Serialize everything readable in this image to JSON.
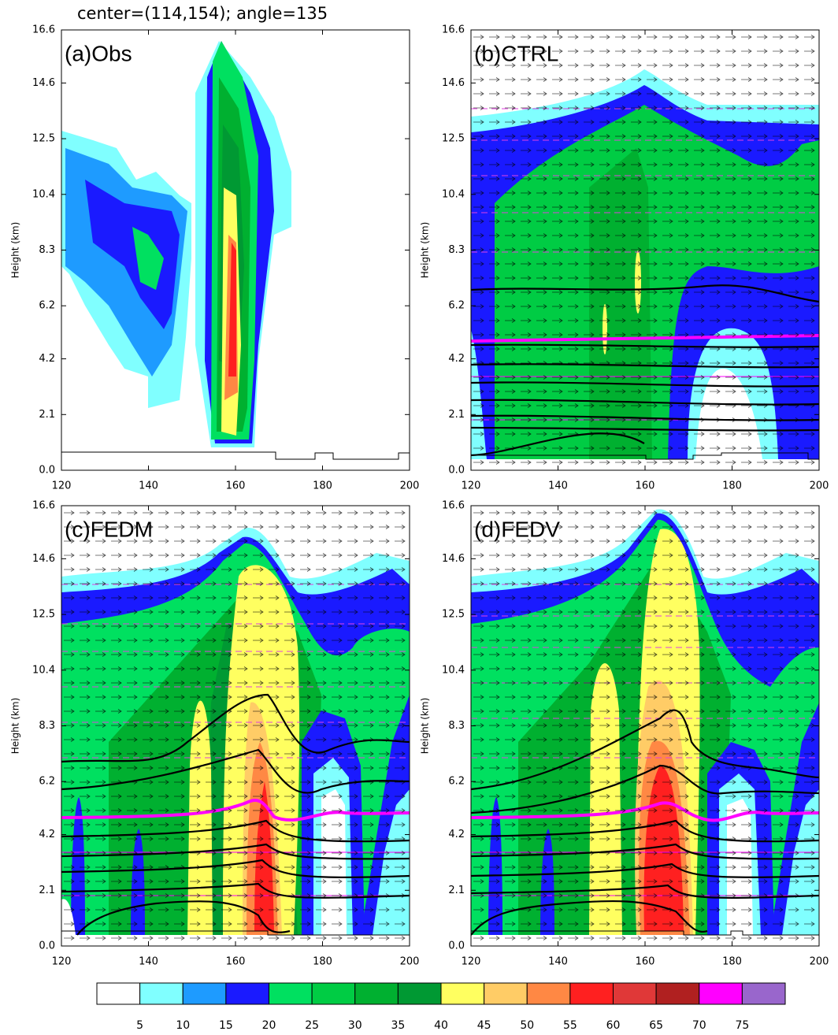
{
  "title": "center=(114,154); angle=135",
  "chart_data": [
    {
      "type": "contour",
      "title": "(a)Obs",
      "ylabel": "Height (km)",
      "xlim": [
        120,
        200
      ],
      "xticks": [
        120,
        140,
        160,
        180,
        200
      ],
      "ylim": [
        0,
        16.6
      ],
      "yticks": [
        {
          "value": 0,
          "label": "0.0"
        },
        2.1,
        4.2,
        6.2,
        8.3,
        10.4,
        12.5,
        14.6,
        16.6
      ]
    },
    {
      "type": "contour",
      "title": "(b)CTRL",
      "ylabel": "Height (km)",
      "xlim": [
        120,
        200
      ],
      "xticks": [
        120,
        140,
        160,
        180,
        200
      ],
      "ylim": [
        0,
        16.6
      ],
      "yticks": [
        {
          "value": 0,
          "label": "0.0"
        },
        2.1,
        4.2,
        6.2,
        8.3,
        10.4,
        12.5,
        14.6,
        16.6
      ]
    },
    {
      "type": "contour",
      "title": "(c)FEDM",
      "ylabel": "Height (km)",
      "xlim": [
        120,
        200
      ],
      "xticks": [
        120,
        140,
        160,
        180,
        200
      ],
      "ylim": [
        0,
        16.6
      ],
      "yticks": [
        {
          "value": 0,
          "label": "0.0"
        },
        2.1,
        4.2,
        6.2,
        8.3,
        10.4,
        12.5,
        14.6,
        16.6
      ]
    },
    {
      "type": "contour",
      "title": "(d)FEDV",
      "ylabel": "Height (km)",
      "xlim": [
        120,
        200
      ],
      "xticks": [
        120,
        140,
        160,
        180,
        200
      ],
      "ylim": [
        0,
        16.6
      ],
      "yticks": [
        {
          "value": 0,
          "label": "0.0"
        },
        2.1,
        4.2,
        6.2,
        8.3,
        10.4,
        12.5,
        14.6,
        16.6
      ]
    }
  ],
  "colorbar": {
    "levels": [
      5,
      10,
      15,
      20,
      25,
      30,
      35,
      40,
      45,
      50,
      55,
      60,
      65,
      70,
      75
    ],
    "colors": [
      "#ffffff",
      "#80ffff",
      "#1e9bff",
      "#1a1aff",
      "#00e060",
      "#00cc44",
      "#00b030",
      "#009933",
      "#ffff60",
      "#ffcc66",
      "#ff8844",
      "#ff2020",
      "#e03838",
      "#b02020",
      "#ff00ff",
      "#9966cc"
    ]
  }
}
